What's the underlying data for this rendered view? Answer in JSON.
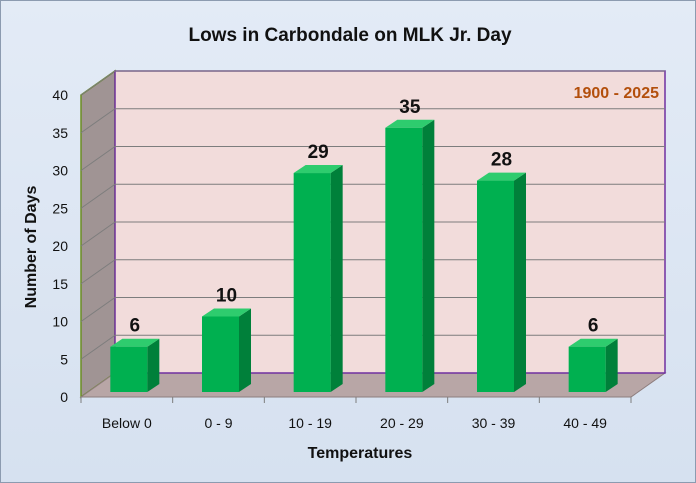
{
  "chart_data": {
    "type": "bar",
    "title": "Lows in Carbondale on MLK Jr. Day",
    "annotation": "1900 - 2025",
    "xlabel": "Temperatures",
    "ylabel": "Number of Days",
    "categories": [
      "Below 0",
      "0 - 9",
      "10 - 19",
      "20 - 29",
      "30 - 39",
      "40 - 49"
    ],
    "values": [
      6,
      10,
      29,
      35,
      28,
      6
    ],
    "ylim": [
      0,
      40
    ],
    "yticks": [
      0,
      5,
      10,
      15,
      20,
      25,
      30,
      35,
      40
    ],
    "grid": true,
    "legend": "none",
    "colors": {
      "bar_front": "#00b050",
      "bar_side": "#00803a",
      "bar_top": "#2ecc6e",
      "back_wall": "#f2dcdb",
      "side_wall": "#a09494",
      "floor": "#b8a6a6",
      "wall_border": "#7030a0",
      "annotation": "#b34f0c"
    }
  }
}
